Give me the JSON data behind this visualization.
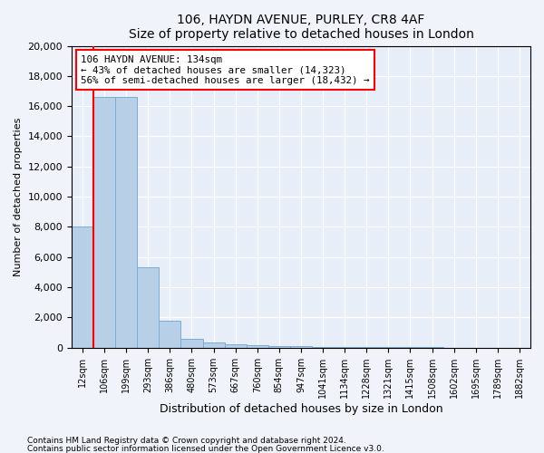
{
  "title1": "106, HAYDN AVENUE, PURLEY, CR8 4AF",
  "title2": "Size of property relative to detached houses in London",
  "xlabel": "Distribution of detached houses by size in London",
  "ylabel": "Number of detached properties",
  "categories": [
    "12sqm",
    "106sqm",
    "199sqm",
    "293sqm",
    "386sqm",
    "480sqm",
    "573sqm",
    "667sqm",
    "760sqm",
    "854sqm",
    "947sqm",
    "1041sqm",
    "1134sqm",
    "1228sqm",
    "1321sqm",
    "1415sqm",
    "1508sqm",
    "1602sqm",
    "1695sqm",
    "1789sqm",
    "1882sqm"
  ],
  "values": [
    8050,
    16600,
    16600,
    5300,
    1800,
    600,
    350,
    220,
    150,
    110,
    80,
    60,
    45,
    35,
    25,
    20,
    15,
    12,
    10,
    8,
    6
  ],
  "bar_color": "#b8cfe8",
  "bar_edge_color": "#7aadd4",
  "vline_x_index": 1,
  "vline_color": "red",
  "annotation_text": "106 HAYDN AVENUE: 134sqm\n← 43% of detached houses are smaller (14,323)\n56% of semi-detached houses are larger (18,432) →",
  "annotation_box_color": "white",
  "annotation_box_edge": "red",
  "ylim": [
    0,
    20000
  ],
  "yticks": [
    0,
    2000,
    4000,
    6000,
    8000,
    10000,
    12000,
    14000,
    16000,
    18000,
    20000
  ],
  "footnote1": "Contains HM Land Registry data © Crown copyright and database right 2024.",
  "footnote2": "Contains public sector information licensed under the Open Government Licence v3.0.",
  "bg_color": "#f0f4fa",
  "plot_bg_color": "#e8eef8",
  "title_fontsize": 10,
  "axis_label_fontsize": 8,
  "tick_fontsize": 7,
  "footnote_fontsize": 6.5
}
